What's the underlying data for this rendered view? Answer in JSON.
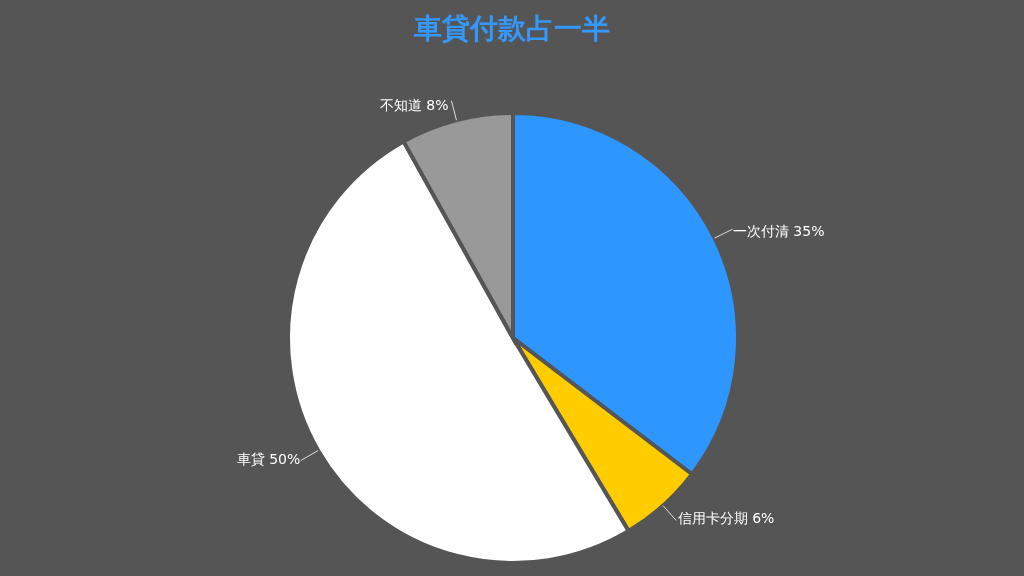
{
  "chart_data": {
    "type": "pie",
    "title": "車貸付款占一半",
    "categories": [
      "一次付清",
      "信用卡分期",
      "車貸",
      "不知道"
    ],
    "values": [
      35,
      6,
      50,
      8
    ],
    "value_labels": [
      "35%",
      "6%",
      "50%",
      "8%"
    ],
    "colors": [
      "#2e96ff",
      "#ffcc00",
      "#ffffff",
      "#999999"
    ]
  }
}
